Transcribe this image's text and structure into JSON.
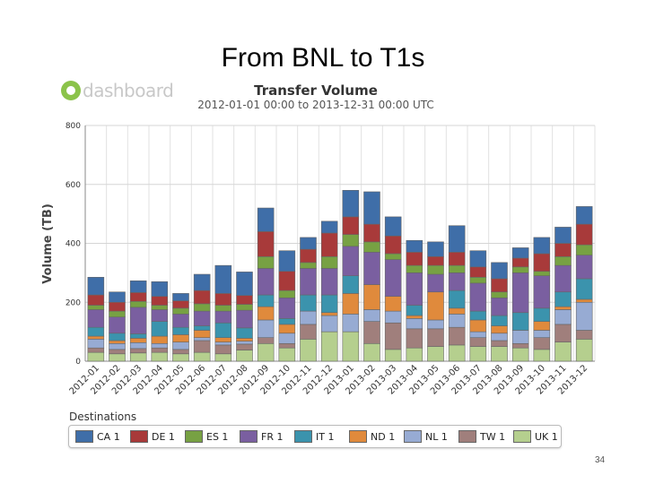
{
  "slide": {
    "title": "From BNL to T1s",
    "page_number": "34"
  },
  "logo": {
    "text": "dashboard"
  },
  "colors": {
    "CA 1": "#3f6ea8",
    "DE 1": "#a83a3a",
    "ES 1": "#77a143",
    "FR 1": "#7a5fa0",
    "IT 1": "#3b93ad",
    "ND 1": "#e08a3c",
    "NL 1": "#97abd3",
    "TW 1": "#a07f7c",
    "UK 1": "#b5cf8e"
  },
  "legend": {
    "title": "Destinations"
  },
  "chart_data": {
    "type": "bar",
    "stacked": true,
    "title": "Transfer Volume",
    "subtitle": "2012-01-01 00:00 to 2013-12-31 00:00 UTC",
    "xlabel": "",
    "ylabel": "Volume (TB)",
    "ylim": [
      0,
      800
    ],
    "yticks": [
      "0",
      "200",
      "400",
      "600",
      "800"
    ],
    "grid": true,
    "legend_position": "bottom",
    "categories": [
      "2012-01",
      "2012-02",
      "2012-03",
      "2012-04",
      "2012-05",
      "2012-06",
      "2012-07",
      "2012-08",
      "2012-09",
      "2012-10",
      "2012-11",
      "2012-12",
      "2013-01",
      "2013-02",
      "2013-03",
      "2013-04",
      "2013-05",
      "2013-06",
      "2013-07",
      "2013-08",
      "2013-09",
      "2013-10",
      "2013-11",
      "2013-12"
    ],
    "series": [
      {
        "name": "UK 1",
        "values": [
          30,
          25,
          28,
          30,
          25,
          30,
          25,
          38,
          60,
          45,
          75,
          100,
          100,
          60,
          40,
          45,
          50,
          55,
          50,
          50,
          45,
          40,
          65,
          75
        ]
      },
      {
        "name": "TW 1",
        "values": [
          15,
          15,
          15,
          15,
          15,
          40,
          30,
          20,
          20,
          15,
          50,
          0,
          0,
          75,
          90,
          65,
          60,
          60,
          30,
          20,
          15,
          40,
          60,
          30
        ]
      },
      {
        "name": "NL 1",
        "values": [
          30,
          20,
          20,
          15,
          25,
          10,
          10,
          10,
          60,
          35,
          45,
          55,
          60,
          40,
          40,
          35,
          30,
          45,
          20,
          25,
          45,
          25,
          50,
          95
        ]
      },
      {
        "name": "ND 1",
        "values": [
          10,
          10,
          15,
          25,
          25,
          25,
          15,
          10,
          45,
          30,
          0,
          10,
          70,
          85,
          50,
          10,
          95,
          20,
          40,
          25,
          0,
          30,
          10,
          10
        ]
      },
      {
        "name": "IT 1",
        "values": [
          30,
          25,
          15,
          50,
          25,
          15,
          50,
          35,
          40,
          20,
          55,
          60,
          60,
          0,
          0,
          35,
          0,
          60,
          30,
          35,
          60,
          45,
          50,
          70
        ]
      },
      {
        "name": "FR 1",
        "values": [
          60,
          55,
          90,
          40,
          45,
          50,
          40,
          60,
          90,
          70,
          90,
          90,
          100,
          110,
          125,
          110,
          60,
          60,
          95,
          60,
          135,
          110,
          90,
          80
        ]
      },
      {
        "name": "ES 1",
        "values": [
          15,
          20,
          20,
          15,
          20,
          25,
          20,
          20,
          40,
          25,
          20,
          40,
          40,
          35,
          20,
          25,
          30,
          25,
          20,
          20,
          20,
          15,
          30,
          35
        ]
      },
      {
        "name": "DE 1",
        "values": [
          35,
          30,
          30,
          30,
          25,
          45,
          40,
          30,
          85,
          65,
          45,
          80,
          60,
          60,
          60,
          45,
          30,
          45,
          35,
          45,
          30,
          60,
          45,
          70
        ]
      },
      {
        "name": "CA 1",
        "values": [
          60,
          35,
          40,
          50,
          25,
          55,
          95,
          80,
          80,
          70,
          40,
          40,
          90,
          110,
          65,
          40,
          50,
          90,
          55,
          55,
          35,
          55,
          55,
          60
        ]
      }
    ]
  }
}
